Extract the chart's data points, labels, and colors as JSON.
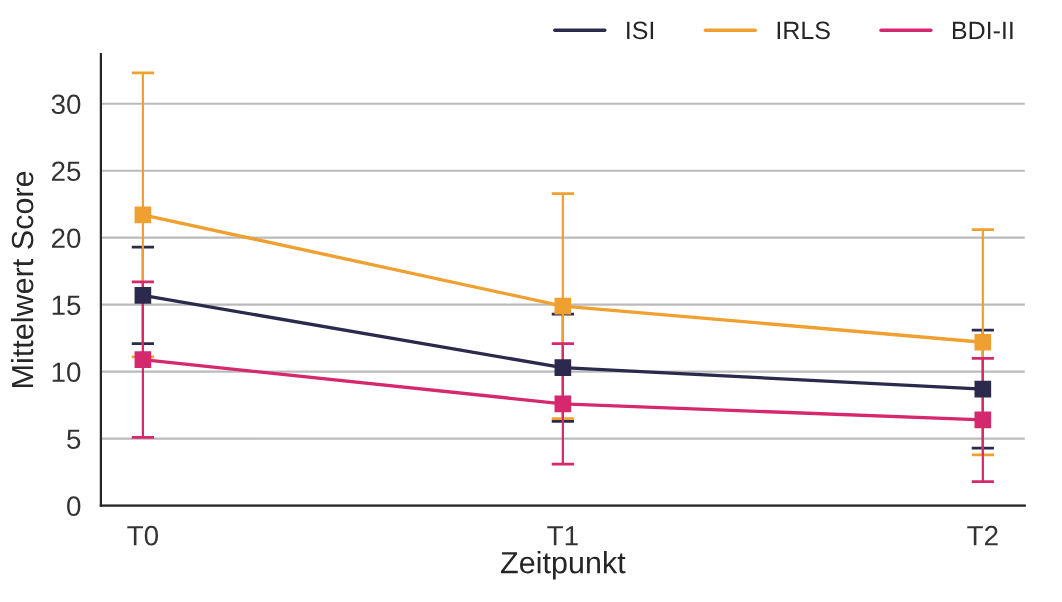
{
  "chart_data": {
    "type": "line",
    "xlabel": "Zeitpunkt",
    "ylabel": "Mittelwert Score",
    "categories": [
      "T0",
      "T1",
      "T2"
    ],
    "series": [
      {
        "name": "ISI",
        "color": "#2b2a4c",
        "values": [
          15.7,
          10.3,
          8.7
        ],
        "errors": [
          3.6,
          4.0,
          4.4
        ]
      },
      {
        "name": "IRLS",
        "color": "#f0a030",
        "values": [
          21.7,
          14.9,
          12.2
        ],
        "errors": [
          10.6,
          8.4,
          8.4
        ]
      },
      {
        "name": "BDI-II",
        "color": "#d6286e",
        "values": [
          10.9,
          7.6,
          6.4
        ],
        "errors": [
          5.8,
          4.5,
          4.6
        ]
      }
    ],
    "ylim": [
      0,
      33.7
    ],
    "yticks": [
      0,
      5,
      10,
      15,
      20,
      25,
      30
    ],
    "grid": "y",
    "legend": "top right",
    "marker": "square",
    "line_style": "solid"
  }
}
